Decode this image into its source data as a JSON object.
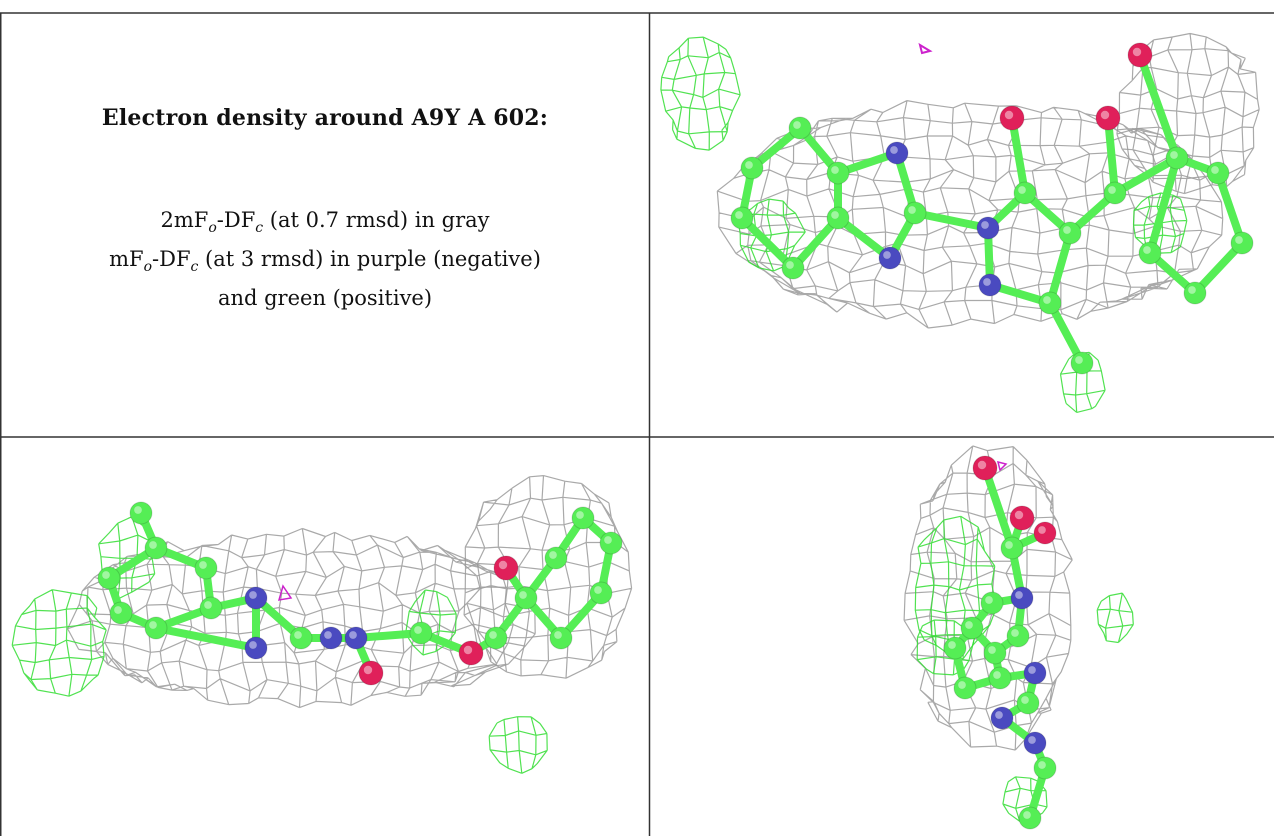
{
  "panel": {
    "title": "Electron density around A9Y A 602:",
    "legend": {
      "line1": {
        "pre": "2mF",
        "s1": "o",
        "mid": "-DF",
        "s2": "c",
        "post": " (at 0.7 rmsd) in gray"
      },
      "line2": {
        "pre": "mF",
        "s1": "o",
        "mid": "-DF",
        "s2": "c",
        "post": " (at 3 rmsd) in purple (negative)"
      },
      "line3": "and green (positive)"
    }
  },
  "colors": {
    "mesh_gray": "#9a9a9a",
    "mesh_green": "#33dd33",
    "atom_carbon": "#55ee55",
    "atom_nitrogen": "#4a4ac0",
    "atom_oxygen": "#e0205a",
    "mesh_purple": "#cc22cc",
    "grid_lines": "#333333"
  }
}
